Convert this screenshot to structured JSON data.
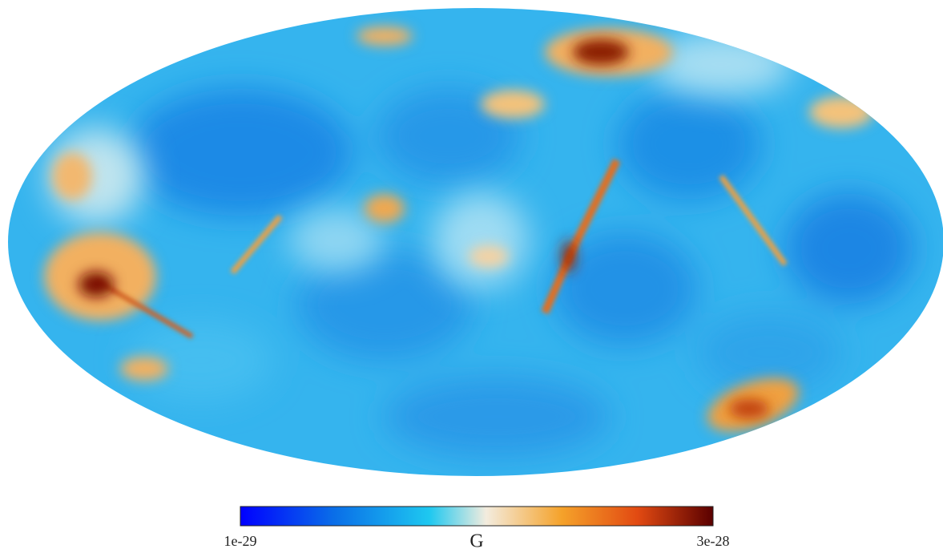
{
  "map": {
    "colorbar": {
      "min": 1e-29,
      "max": 3e-28,
      "label": "G"
    }
  }
}
